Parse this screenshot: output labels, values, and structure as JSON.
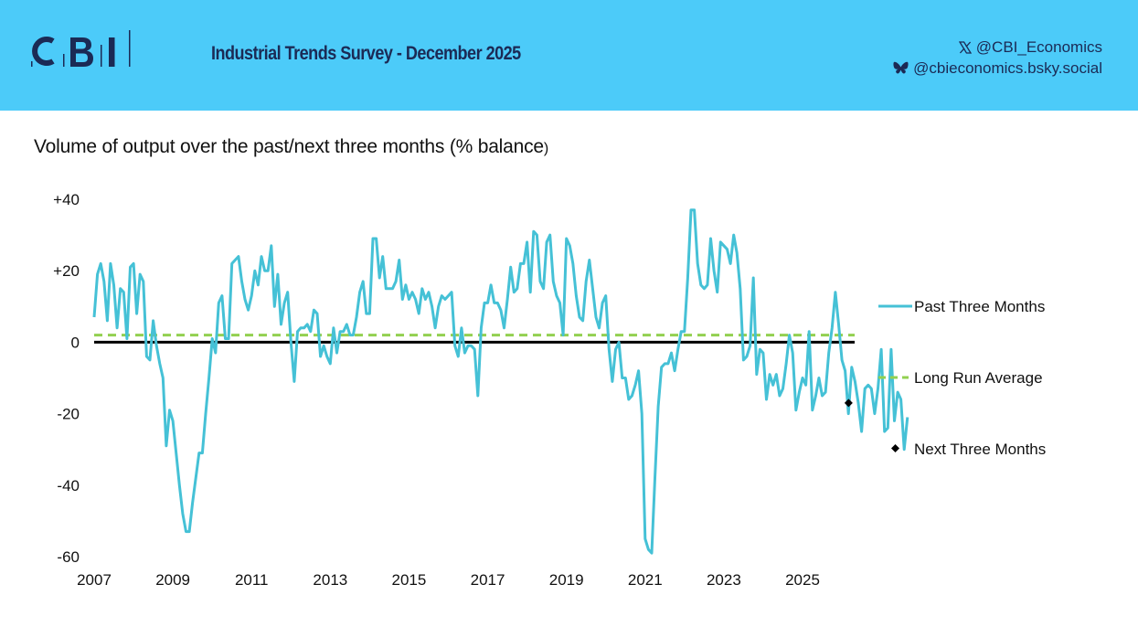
{
  "header": {
    "logo_text": "CBI",
    "report_title": "Industrial Trends Survey - December 2025",
    "social": [
      {
        "icon": "x-icon",
        "handle": "@CBI_Economics"
      },
      {
        "icon": "bluesky-butterfly-icon",
        "handle": "@cbieconomics.bsky.social"
      }
    ]
  },
  "colors": {
    "header_bg": "#4ccbf9",
    "brand_navy": "#1b2a55",
    "series_past": "#45c1d6",
    "series_average": "#92d050",
    "series_next": "#000000",
    "zero_line": "#000000"
  },
  "chart_data": {
    "type": "line",
    "title": "Volume of output over the past/next three months (% balance)",
    "title_main": "Volume of output over the past/next three months (% balance",
    "title_close": ")",
    "xlabel": "",
    "ylabel": "",
    "ylim": [
      -60,
      40
    ],
    "yticks": [
      40,
      20,
      0,
      -20,
      -40,
      -60
    ],
    "ytick_labels": [
      "+40",
      "+20",
      "0",
      "-20",
      "-40",
      "-60"
    ],
    "xlim": [
      2007.0,
      2026.4
    ],
    "xticks": [
      2007,
      2009,
      2011,
      2013,
      2015,
      2017,
      2019,
      2021,
      2023,
      2025
    ],
    "xtick_labels": [
      "2007",
      "2009",
      "2011",
      "2013",
      "2015",
      "2017",
      "2019",
      "2021",
      "2023",
      "2025"
    ],
    "grid": false,
    "legend_position": "right",
    "series": [
      {
        "name": "Past Three Months",
        "style": "solid",
        "frequency": "monthly",
        "start": "2007-01",
        "values_note": "approximate month-by-month trace of the plotted line; individual values not labelled in source",
        "values": [
          7,
          19,
          22,
          17,
          6,
          22,
          16,
          4,
          15,
          14,
          1,
          21,
          22,
          8,
          19,
          17,
          -4,
          -5,
          6,
          -1,
          -6,
          -10,
          -29,
          -19,
          -22,
          -31,
          -40,
          -48,
          -53,
          -53,
          -45,
          -38,
          -31,
          -31,
          -20,
          -10,
          1,
          -3,
          11,
          13,
          1,
          1,
          22,
          23,
          24,
          17,
          12,
          9,
          13,
          20,
          16,
          24,
          20,
          20,
          27,
          10,
          19,
          5,
          11,
          14,
          0,
          -11,
          3,
          4,
          4,
          5,
          3,
          9,
          8,
          -4,
          -1,
          -4,
          -6,
          4,
          -3,
          3,
          3,
          5,
          2,
          2,
          7,
          14,
          17,
          8,
          8,
          29,
          29,
          18,
          24,
          15,
          15,
          15,
          17,
          23,
          12,
          16,
          12,
          14,
          12,
          8,
          15,
          12,
          14,
          10,
          4,
          10,
          13,
          12,
          13,
          14,
          -1,
          -4,
          4,
          -3,
          -1,
          -1,
          -2,
          -15,
          4,
          11,
          11,
          16,
          11,
          11,
          9,
          4,
          12,
          21,
          14,
          15,
          22,
          22,
          28,
          14,
          31,
          30,
          17,
          15,
          28,
          30,
          17,
          13,
          11,
          2,
          29,
          27,
          22,
          13,
          7,
          6,
          17,
          23,
          15,
          7,
          4,
          11,
          13,
          -2,
          -11,
          -2,
          0,
          -10,
          -10,
          -16,
          -15,
          -12,
          -8,
          -20,
          -55,
          -58,
          -59,
          -38,
          -18,
          -7,
          -6,
          -6,
          -3,
          -8,
          -2,
          3,
          3,
          18,
          37,
          37,
          22,
          16,
          15,
          16,
          29,
          20,
          14,
          28,
          27,
          26,
          22,
          30,
          25,
          15,
          -5,
          -4,
          -1,
          18,
          -9,
          -2,
          -3,
          -16,
          -9,
          -12,
          -9,
          -15,
          -13,
          -6,
          2,
          -3,
          -19,
          -14,
          -10,
          -12,
          3,
          -19,
          -15,
          -10,
          -15,
          -14,
          -3,
          4,
          14,
          5,
          -5,
          -8,
          -20,
          -7,
          -11,
          -17,
          -25,
          -13,
          -12,
          -13,
          -20,
          -13,
          -2,
          -25,
          -24,
          -2,
          -22,
          -14,
          -16,
          -30,
          -21
        ]
      },
      {
        "name": "Long Run Average",
        "style": "dashed",
        "value": 2
      },
      {
        "name": "Next Three Months",
        "style": "marker-diamond",
        "points": [
          {
            "x": 2026.17,
            "y": -17
          }
        ]
      }
    ]
  }
}
